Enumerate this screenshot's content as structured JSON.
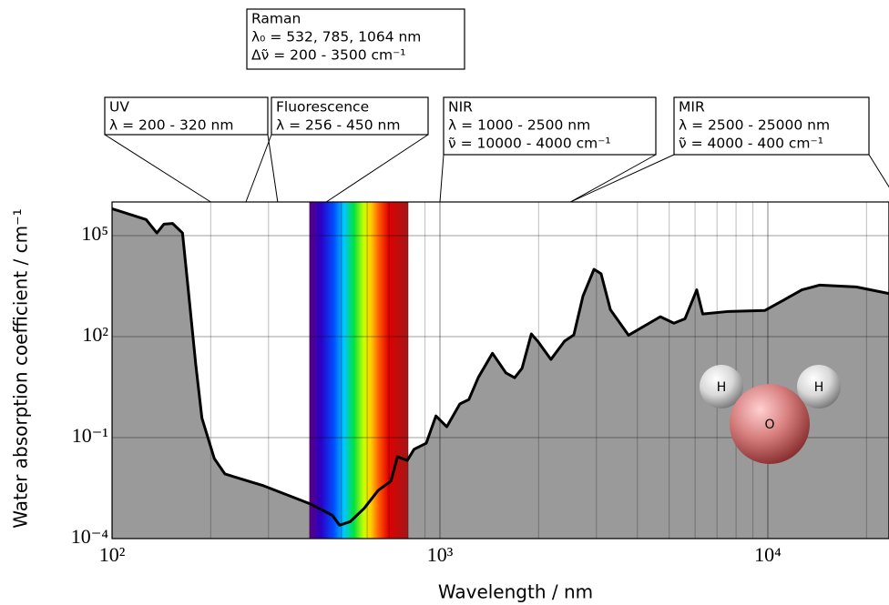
{
  "chart_data": {
    "type": "area",
    "x_label": "Wavelength / nm",
    "y_label": "Water absorption coefficient / cm⁻¹",
    "xscale": "log",
    "yscale": "log",
    "xlim": [
      100,
      23400
    ],
    "ylim": [
      0.0001,
      1000000
    ],
    "xticks": [
      {
        "value": 100,
        "label": "10²"
      },
      {
        "value": 1000,
        "label": "10³"
      },
      {
        "value": 10000,
        "label": "10⁴"
      }
    ],
    "xminorticks": [
      200,
      300,
      400,
      500,
      600,
      700,
      800,
      900,
      2000,
      3000,
      4000,
      5000,
      6000,
      7000,
      8000,
      9000,
      20000
    ],
    "yticks": [
      {
        "value": 0.0001,
        "label": "10⁻⁴"
      },
      {
        "value": 0.1,
        "label": "10⁻¹"
      },
      {
        "value": 100,
        "label": "10²"
      },
      {
        "value": 100000,
        "label": "10⁵"
      }
    ],
    "grid": true,
    "color": "#9a9a9a",
    "line_color": "#000000",
    "x": [
      100,
      127,
      137,
      144,
      153,
      164,
      171,
      180,
      188,
      205,
      221,
      290,
      400,
      470,
      494,
      533,
      588,
      648,
      709,
      742,
      795,
      834,
      908,
      972,
      1049,
      1150,
      1225,
      1310,
      1446,
      1590,
      1690,
      1780,
      1900,
      1987,
      2180,
      2400,
      2560,
      2730,
      2950,
      3100,
      3310,
      3760,
      4700,
      5170,
      5590,
      6070,
      6330,
      7600,
      9800,
      11100,
      12700,
      14400,
      18600,
      23400
    ],
    "values": [
      630000,
      300000,
      120000,
      220000,
      230000,
      120000,
      2200,
      15,
      0.38,
      0.024,
      0.0083,
      0.0037,
      0.0011,
      0.00049,
      0.00025,
      0.00032,
      0.0008,
      0.0027,
      0.0051,
      0.027,
      0.021,
      0.045,
      0.068,
      0.44,
      0.21,
      1.0,
      1.35,
      6.2,
      32,
      8.3,
      6,
      11.5,
      120,
      73,
      21,
      74,
      112,
      1600,
      10000,
      7400,
      630,
      110,
      390,
      250,
      340,
      2450,
      470,
      560,
      600,
      1170,
      2450,
      3400,
      3000,
      1900
    ],
    "visible_band": [
      400,
      800
    ],
    "annotations": [
      {
        "lines": [
          "Raman",
          "λ₀ = 532, 785, 1064 nm",
          "Δν̃ = 200 - 3500 cm⁻¹"
        ]
      },
      {
        "lines": [
          "UV",
          "λ = 200 - 320 nm"
        ],
        "range": [
          200,
          320
        ]
      },
      {
        "lines": [
          "Fluorescence",
          "λ = 256 - 450 nm"
        ],
        "range": [
          256,
          450
        ]
      },
      {
        "lines": [
          "NIR",
          "λ = 1000 - 2500 nm",
          "ν̃ = 10000 - 4000 cm⁻¹"
        ],
        "range": [
          1000,
          2500
        ]
      },
      {
        "lines": [
          "MIR",
          "λ = 2500 - 25000 nm",
          "ν̃ = 4000 - 400 cm⁻¹"
        ],
        "range": [
          2500,
          25000
        ]
      }
    ],
    "molecule_labels": [
      "H",
      "O",
      "H"
    ]
  }
}
